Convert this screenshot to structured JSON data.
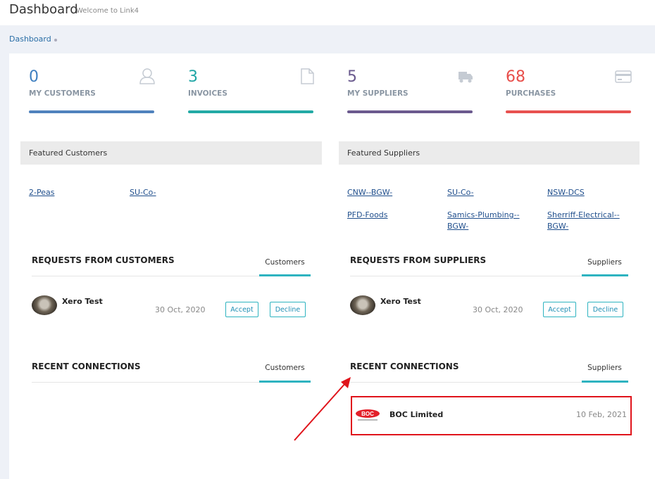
{
  "header": {
    "title": "Dashboard",
    "subtitle": "Welcome to Link4"
  },
  "breadcrumb": {
    "item": "Dashboard"
  },
  "stats": [
    {
      "value": 0,
      "label": "MY CUSTOMERS"
    },
    {
      "value": 3,
      "label": "INVOICES"
    },
    {
      "value": 5,
      "label": "MY SUPPLIERS"
    },
    {
      "value": 68,
      "label": "PURCHASES"
    }
  ],
  "featured_customers": {
    "title": "Featured Customers",
    "links": [
      "2-Peas",
      "SU-Co-"
    ]
  },
  "featured_suppliers": {
    "title": "Featured Suppliers",
    "links": [
      "CNW--BGW-",
      "SU-Co-",
      "NSW-DCS",
      "PFD-Foods",
      "Samics-Plumbing--BGW-",
      "Sherriff-Electrical--BGW-"
    ]
  },
  "requests_customers": {
    "title": "REQUESTS FROM CUSTOMERS",
    "tab": "Customers",
    "item": {
      "name": "Xero Test",
      "date": "30 Oct, 2020",
      "accept": "Accept",
      "decline": "Decline"
    }
  },
  "requests_suppliers": {
    "title": "REQUESTS FROM SUPPLIERS",
    "tab": "Suppliers",
    "item": {
      "name": "Xero Test",
      "date": "30 Oct, 2020",
      "accept": "Accept",
      "decline": "Decline"
    }
  },
  "connections_customers": {
    "title": "RECENT CONNECTIONS",
    "tab": "Customers"
  },
  "connections_suppliers": {
    "title": "RECENT CONNECTIONS",
    "tab": "Suppliers",
    "item": {
      "name": "BOC Limited",
      "date": "10 Feb, 2021"
    }
  }
}
